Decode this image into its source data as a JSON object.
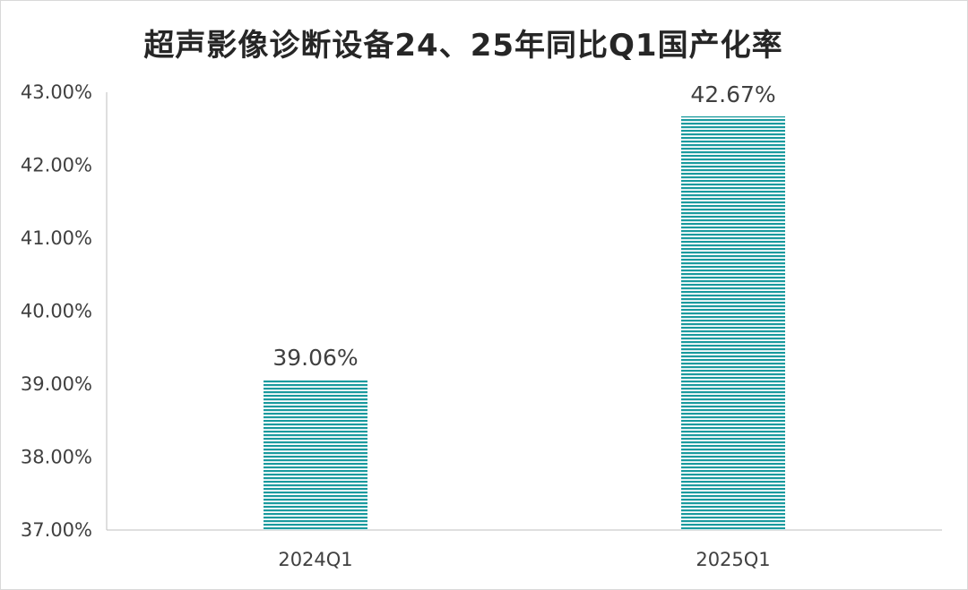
{
  "chart_data": {
    "type": "bar",
    "title": "超声影像诊断设备24、25年同比Q1国产化率",
    "categories": [
      "2024Q1",
      "2025Q1"
    ],
    "values": [
      39.06,
      42.67
    ],
    "data_labels": [
      "39.06%",
      "42.67%"
    ],
    "xlabel": "",
    "ylabel": "",
    "ylim": [
      37,
      43
    ],
    "yticks": [
      37,
      38,
      39,
      40,
      41,
      42,
      43
    ],
    "ytick_labels": [
      "37.00%",
      "38.00%",
      "39.00%",
      "40.00%",
      "41.00%",
      "42.00%",
      "43.00%"
    ],
    "grid": false,
    "legend": "none",
    "bar_color": "#1a9a9e",
    "bar_pattern": "horizontal-stripes"
  }
}
